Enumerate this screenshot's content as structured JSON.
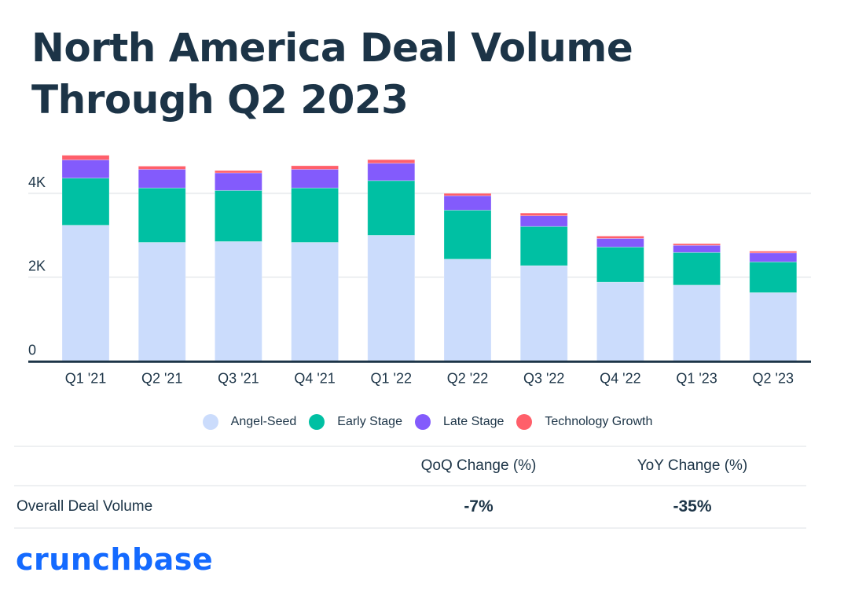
{
  "title": "North America Deal Volume Through Q2 2023",
  "colors": {
    "Angel-Seed": "#cbdcfc",
    "Early Stage": "#00c0a3",
    "Late Stage": "#835bfc",
    "Technology Growth": "#ff5f6a",
    "axis": "#1c3447",
    "grid": "#eceef0",
    "brand": "#146aff"
  },
  "chart_data": {
    "type": "bar",
    "stacked": true,
    "title": "North America Deal Volume Through Q2 2023",
    "xlabel": "",
    "ylabel": "",
    "ylim": [
      0,
      5000
    ],
    "yticks": [
      0,
      2000,
      4000
    ],
    "ytick_labels": [
      "0",
      "2K",
      "4K"
    ],
    "grid": true,
    "legend_position": "bottom",
    "categories": [
      "Q1 '21",
      "Q2 '21",
      "Q3 '21",
      "Q4 '21",
      "Q1 '22",
      "Q2 '22",
      "Q3 '22",
      "Q4 '22",
      "Q1 '23",
      "Q2 '23"
    ],
    "series": [
      {
        "name": "Angel-Seed",
        "values": [
          3240,
          2830,
          2850,
          2830,
          3000,
          2430,
          2275,
          1880,
          1810,
          1630
        ]
      },
      {
        "name": "Early Stage",
        "values": [
          1125,
          1300,
          1220,
          1300,
          1305,
          1170,
          935,
          840,
          780,
          735
        ]
      },
      {
        "name": "Late Stage",
        "values": [
          435,
          445,
          420,
          445,
          415,
          345,
          255,
          205,
          170,
          215
        ]
      },
      {
        "name": "Technology Growth",
        "values": [
          110,
          75,
          55,
          85,
          85,
          55,
          65,
          55,
          40,
          40
        ]
      }
    ]
  },
  "legend": [
    "Angel-Seed",
    "Early Stage",
    "Late Stage",
    "Technology Growth"
  ],
  "stats": {
    "headers": [
      "",
      "QoQ Change (%)",
      "YoY Change (%)"
    ],
    "rows": [
      {
        "label": "Overall Deal Volume",
        "qoq": "-7%",
        "yoy": "-35%"
      }
    ]
  },
  "logo": "crunchbase"
}
